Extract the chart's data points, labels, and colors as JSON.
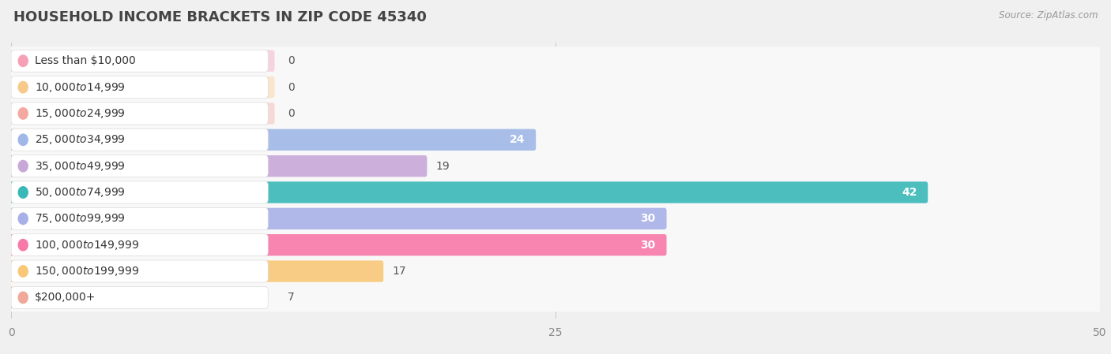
{
  "title": "HOUSEHOLD INCOME BRACKETS IN ZIP CODE 45340",
  "source": "Source: ZipAtlas.com",
  "categories": [
    "Less than $10,000",
    "$10,000 to $14,999",
    "$15,000 to $24,999",
    "$25,000 to $34,999",
    "$35,000 to $49,999",
    "$50,000 to $74,999",
    "$75,000 to $99,999",
    "$100,000 to $149,999",
    "$150,000 to $199,999",
    "$200,000+"
  ],
  "values": [
    0,
    0,
    0,
    24,
    19,
    42,
    30,
    30,
    17,
    7
  ],
  "bar_colors": [
    "#f5a0b5",
    "#f8c98a",
    "#f5a8a0",
    "#a0b8e8",
    "#c8a8d8",
    "#3ab8b8",
    "#a8b0e8",
    "#f878a8",
    "#f8c878",
    "#f0a898"
  ],
  "xlim": [
    0,
    50
  ],
  "xticks": [
    0,
    25,
    50
  ],
  "background_color": "#f0f0f0",
  "row_bg_color": "#e8e8e8",
  "bar_bg_color": "#f8f8f8",
  "label_box_color": "#ffffff",
  "label_inside_threshold": 20,
  "title_fontsize": 13,
  "tick_fontsize": 10,
  "bar_label_fontsize": 10,
  "category_fontsize": 10
}
